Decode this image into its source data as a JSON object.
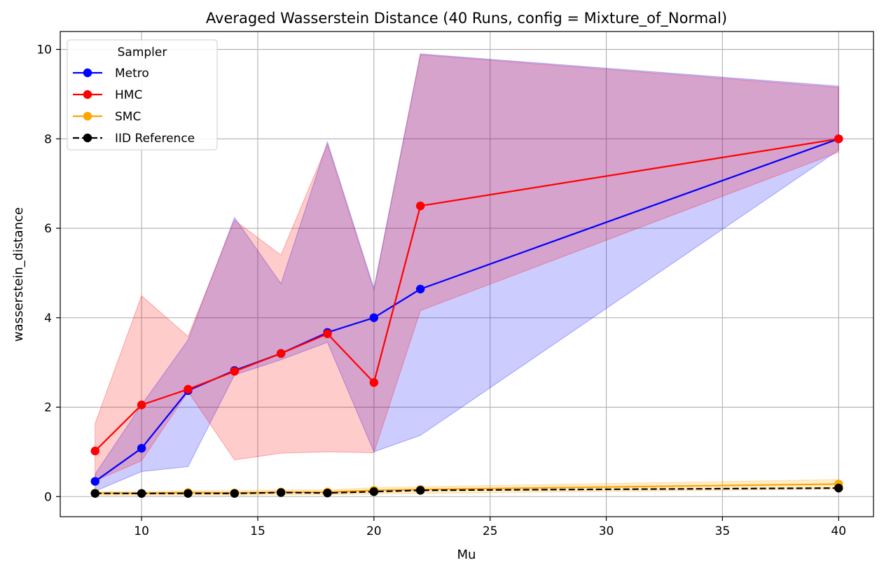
{
  "chart_data": {
    "type": "line",
    "title": "Averaged Wasserstein Distance (40 Runs, config = Mixture_of_Normal)",
    "xlabel": "Mu",
    "ylabel": "wasserstein_distance",
    "xlim": [
      6.5,
      41.5
    ],
    "ylim": [
      -0.45,
      10.4
    ],
    "xticks": [
      10,
      15,
      20,
      25,
      30,
      35,
      40
    ],
    "yticks": [
      0,
      2,
      4,
      6,
      8,
      10
    ],
    "grid": true,
    "legend": {
      "title": "Sampler",
      "placement": "top-left"
    },
    "x": [
      8,
      10,
      12,
      14,
      16,
      18,
      20,
      22,
      40
    ],
    "series": [
      {
        "name": "Metro",
        "color": "#0000ff",
        "linestyle": "solid",
        "values": [
          0.34,
          1.08,
          2.37,
          2.82,
          3.2,
          3.67,
          4.0,
          4.64,
          8.0
        ],
        "band_low": [
          0.12,
          0.56,
          0.67,
          2.72,
          3.06,
          3.45,
          1.0,
          1.37,
          7.75
        ],
        "band_high": [
          0.5,
          2.05,
          3.5,
          6.24,
          4.76,
          7.93,
          4.66,
          9.9,
          9.18
        ]
      },
      {
        "name": "HMC",
        "color": "#ff0000",
        "linestyle": "solid",
        "values": [
          1.02,
          2.05,
          2.4,
          2.8,
          3.2,
          3.64,
          2.55,
          6.5,
          8.0
        ],
        "band_low": [
          0.35,
          0.8,
          2.35,
          0.82,
          0.97,
          1.0,
          0.98,
          4.16,
          7.7
        ],
        "band_high": [
          1.63,
          4.49,
          3.58,
          6.18,
          5.4,
          7.88,
          4.6,
          9.88,
          9.15
        ]
      },
      {
        "name": "SMC",
        "color": "#ffa500",
        "linestyle": "solid",
        "values": [
          0.08,
          0.07,
          0.09,
          0.08,
          0.1,
          0.1,
          0.14,
          0.16,
          0.28
        ],
        "band_low": [
          0.03,
          0.03,
          0.03,
          0.03,
          0.04,
          0.04,
          0.06,
          0.07,
          0.17
        ],
        "band_high": [
          0.12,
          0.11,
          0.13,
          0.13,
          0.15,
          0.15,
          0.2,
          0.22,
          0.38
        ]
      },
      {
        "name": "IID Reference",
        "color": "#000000",
        "linestyle": "dashed",
        "values": [
          0.07,
          0.07,
          0.07,
          0.07,
          0.09,
          0.08,
          0.11,
          0.14,
          0.19
        ]
      }
    ]
  }
}
